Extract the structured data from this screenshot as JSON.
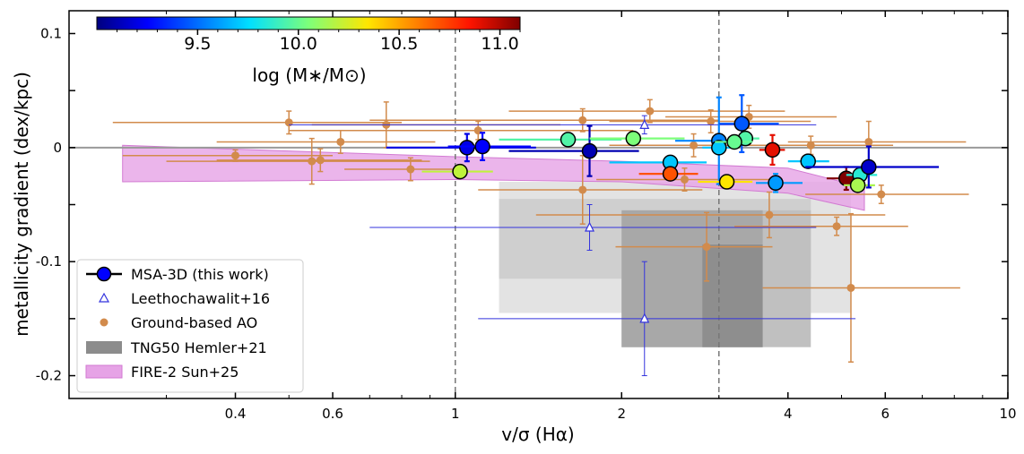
{
  "chart_data": {
    "type": "scatter",
    "xlabel": "v/σ (Hα)",
    "ylabel": "metallicity gradient (dex/kpc)",
    "xscale": "log",
    "xlim": [
      0.2,
      10
    ],
    "ylim": [
      -0.22,
      0.12
    ],
    "x_ticks": [
      0.4,
      0.6,
      1,
      2,
      4,
      6,
      10
    ],
    "x_tick_labels": [
      "0.4",
      "0.6",
      "1",
      "2",
      "4",
      "6",
      "10"
    ],
    "y_ticks": [
      0.1,
      0,
      -0.1,
      -0.2
    ],
    "y_tick_labels": [
      "0.1",
      "0",
      "-0.1",
      "-0.2"
    ],
    "vertical_lines": [
      1.0,
      3.0
    ],
    "horizontal_line": 0,
    "colorbar": {
      "label": "log (M∗/M⊙)",
      "range": [
        9.0,
        11.1
      ],
      "ticks": [
        9.5,
        10.0,
        10.5,
        11.0
      ],
      "tick_labels": [
        "9.5",
        "10.0",
        "10.5",
        "11.0"
      ]
    },
    "legend": {
      "position": "lower-left",
      "entries": [
        {
          "label": "MSA-3D (this work)",
          "marker": "circle-line",
          "color": "#0000ff"
        },
        {
          "label": "Leethochawalit+16",
          "marker": "triangle-open",
          "color": "#3333dd"
        },
        {
          "label": "Ground-based AO",
          "marker": "circle",
          "color": "#d28b4c"
        },
        {
          "label": "TNG50 Hemler+21",
          "marker": "patch",
          "color": "#8c8c8c"
        },
        {
          "label": "FIRE-2 Sun+25",
          "marker": "patch",
          "color": "#e6a3e6"
        }
      ]
    },
    "series": [
      {
        "name": "MSA-3D (this work)",
        "points": [
          {
            "x": 1.05,
            "y": 0.0,
            "xerr": [
              0.3,
              0.35
            ],
            "yerr": 0.012,
            "logm": 9.2
          },
          {
            "x": 1.12,
            "y": 0.001,
            "xerr": [
              0.15,
              0.25
            ],
            "yerr": 0.012,
            "logm": 9.25
          },
          {
            "x": 1.6,
            "y": 0.007,
            "xerr": [
              0.4,
              0.4
            ],
            "yerr": 0.0,
            "logm": 9.95
          },
          {
            "x": 1.75,
            "y": -0.003,
            "xerr": [
              0.5,
              0.4
            ],
            "yerr": 0.022,
            "logm": 9.1
          },
          {
            "x": 1.02,
            "y": -0.021,
            "xerr": [
              0.15,
              0.15
            ],
            "yerr": 0.0,
            "logm": 10.2
          },
          {
            "x": 2.1,
            "y": 0.008,
            "xerr": [
              0.35,
              0.5
            ],
            "yerr": 0.0,
            "logm": 10.05
          },
          {
            "x": 2.45,
            "y": -0.013,
            "xerr": [
              0.55,
              0.4
            ],
            "yerr": 0.0,
            "logm": 9.7
          },
          {
            "x": 2.45,
            "y": -0.023,
            "xerr": [
              0.3,
              0.3
            ],
            "yerr": 0.0,
            "logm": 10.7
          },
          {
            "x": 3.0,
            "y": 0.006,
            "xerr": [
              0.5,
              0.4
            ],
            "yerr": 0.038,
            "logm": 9.55
          },
          {
            "x": 3.0,
            "y": 0.0,
            "xerr": [
              0.2,
              0.2
            ],
            "yerr": 0.0,
            "logm": 9.7
          },
          {
            "x": 3.3,
            "y": 0.021,
            "xerr": [
              0.3,
              0.55
            ],
            "yerr": 0.025,
            "logm": 9.45
          },
          {
            "x": 3.35,
            "y": 0.008,
            "xerr": [
              0.2,
              0.2
            ],
            "yerr": 0.0,
            "logm": 9.95
          },
          {
            "x": 3.2,
            "y": 0.005,
            "xerr": [
              0.25,
              0.25
            ],
            "yerr": 0.0,
            "logm": 10.0
          },
          {
            "x": 3.1,
            "y": -0.03,
            "xerr": [
              0.35,
              0.35
            ],
            "yerr": 0.0,
            "logm": 10.35
          },
          {
            "x": 3.75,
            "y": -0.002,
            "xerr": [
              0.2,
              0.2
            ],
            "yerr": 0.013,
            "logm": 10.9
          },
          {
            "x": 3.8,
            "y": -0.031,
            "xerr": [
              0.3,
              0.45
            ],
            "yerr": 0.008,
            "logm": 9.6
          },
          {
            "x": 4.35,
            "y": -0.012,
            "xerr": [
              0.35,
              0.4
            ],
            "yerr": 0.0,
            "logm": 9.7
          },
          {
            "x": 5.1,
            "y": -0.027,
            "xerr": [
              0.4,
              0.4
            ],
            "yerr": 0.01,
            "logm": 11.1
          },
          {
            "x": 5.4,
            "y": -0.024,
            "xerr": [
              0.3,
              0.4
            ],
            "yerr": 0.0,
            "logm": 9.85
          },
          {
            "x": 5.35,
            "y": -0.033,
            "xerr": [
              0.3,
              0.4
            ],
            "yerr": 0.0,
            "logm": 10.15
          },
          {
            "x": 5.6,
            "y": -0.017,
            "xerr": [
              1.3,
              1.9
            ],
            "yerr": 0.018,
            "logm": 9.15
          }
        ]
      },
      {
        "name": "Leethochawalit+16",
        "points": [
          {
            "x": 2.2,
            "y": 0.02,
            "xerr": [
              1.7,
              2.3
            ],
            "yerr": 0.008
          },
          {
            "x": 1.75,
            "y": -0.07,
            "xerr": [
              1.05,
              2.75
            ],
            "yerr": 0.02
          },
          {
            "x": 2.2,
            "y": -0.15,
            "xerr": [
              1.1,
              3.1
            ],
            "yerr": 0.05
          }
        ]
      },
      {
        "name": "Ground-based AO",
        "points": [
          {
            "x": 0.5,
            "y": 0.022,
            "xerr": [
              0.26,
              0.3
            ],
            "yerr": 0.01
          },
          {
            "x": 0.62,
            "y": 0.005,
            "xerr": [
              0.25,
              0.3
            ],
            "yerr": 0.01
          },
          {
            "x": 0.4,
            "y": -0.007,
            "xerr": [
              0.15,
              0.2
            ],
            "yerr": 0.005
          },
          {
            "x": 0.57,
            "y": -0.011,
            "xerr": [
              0.2,
              0.3
            ],
            "yerr": 0.01
          },
          {
            "x": 0.55,
            "y": -0.012,
            "xerr": [
              0.25,
              0.35
            ],
            "yerr": 0.02
          },
          {
            "x": 0.75,
            "y": 0.02,
            "xerr": [
              0.2,
              0.8
            ],
            "yerr": 0.02
          },
          {
            "x": 0.83,
            "y": -0.019,
            "xerr": [
              0.2,
              0.2
            ],
            "yerr": 0.01
          },
          {
            "x": 1.1,
            "y": 0.015,
            "xerr": [
              0.6,
              1.0
            ],
            "yerr": 0.008
          },
          {
            "x": 1.7,
            "y": 0.024,
            "xerr": [
              1.0,
              1.3
            ],
            "yerr": 0.01
          },
          {
            "x": 1.7,
            "y": -0.037,
            "xerr": [
              0.6,
              1.1
            ],
            "yerr": 0.03
          },
          {
            "x": 2.25,
            "y": 0.032,
            "xerr": [
              1.0,
              1.7
            ],
            "yerr": 0.01
          },
          {
            "x": 2.7,
            "y": 0.002,
            "xerr": [
              0.8,
              1.2
            ],
            "yerr": 0.01
          },
          {
            "x": 2.6,
            "y": -0.028,
            "xerr": [
              0.8,
              1.2
            ],
            "yerr": 0.01
          },
          {
            "x": 2.9,
            "y": 0.023,
            "xerr": [
              1.0,
              1.5
            ],
            "yerr": 0.01
          },
          {
            "x": 3.4,
            "y": 0.027,
            "xerr": [
              1.0,
              1.5
            ],
            "yerr": 0.01
          },
          {
            "x": 2.85,
            "y": -0.087,
            "xerr": [
              0.9,
              0.9
            ],
            "yerr": 0.03
          },
          {
            "x": 3.7,
            "y": -0.059,
            "xerr": [
              2.3,
              2.3
            ],
            "yerr": 0.02
          },
          {
            "x": 4.4,
            "y": 0.002,
            "xerr": [
              1.2,
              1.8
            ],
            "yerr": 0.008
          },
          {
            "x": 4.9,
            "y": -0.069,
            "xerr": [
              1.7,
              1.7
            ],
            "yerr": 0.008
          },
          {
            "x": 5.6,
            "y": 0.005,
            "xerr": [
              1.6,
              2.8
            ],
            "yerr": 0.018
          },
          {
            "x": 5.2,
            "y": -0.123,
            "xerr": [
              1.6,
              3.0
            ],
            "yerr": 0.065
          },
          {
            "x": 5.9,
            "y": -0.041,
            "xerr": [
              1.6,
              2.6
            ],
            "yerr": 0.008
          }
        ]
      }
    ],
    "tng50_boxes": [
      {
        "x": [
          1.2,
          5.2
        ],
        "y": [
          -0.145,
          -0.03
        ],
        "gray": "#e3e3e3"
      },
      {
        "x": [
          1.2,
          4.4
        ],
        "y": [
          -0.115,
          -0.045
        ],
        "gray": "#cfcfcf"
      },
      {
        "x": [
          2.0,
          4.4
        ],
        "y": [
          -0.175,
          -0.055
        ],
        "gray": "#c0c0c0"
      },
      {
        "x": [
          2.0,
          3.6
        ],
        "y": [
          -0.175,
          -0.055
        ],
        "gray": "#a8a8a8"
      },
      {
        "x": [
          2.8,
          3.6
        ],
        "y": [
          -0.175,
          -0.085
        ],
        "gray": "#8e8e8e"
      }
    ],
    "fire2_band": {
      "x": [
        0.25,
        1.0,
        2.0,
        4.0,
        5.5
      ],
      "upper": [
        0.002,
        -0.008,
        -0.012,
        -0.018,
        -0.035
      ],
      "lower": [
        -0.03,
        -0.028,
        -0.03,
        -0.04,
        -0.055
      ]
    }
  }
}
